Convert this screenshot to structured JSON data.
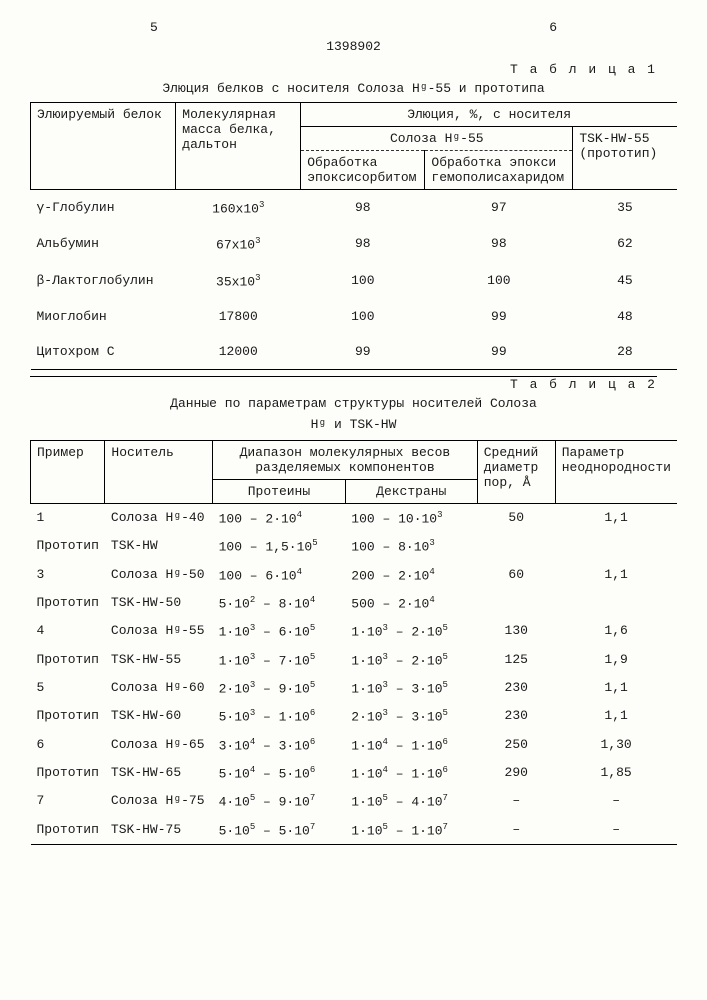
{
  "page_left": "5",
  "page_right": "6",
  "doc_number": "1398902",
  "table1": {
    "label": "Т а б л и ц а 1",
    "caption": "Элюция белков с носителя Солоза Нᵍ-55 и прототипа",
    "head": {
      "protein": "Элюируемый белок",
      "mass": "Молекулярная масса белка, дальтон",
      "elution": "Элюция, %, с  носителя",
      "soloza": "Солоза Нᵍ-55",
      "tsk": "TSK-HW-55 (прототип)",
      "treat1": "Обработка эпоксисорбитом",
      "treat2": "Обработка эпокси гемополисахаридом"
    },
    "rows": [
      {
        "p": "γ-Глобулин",
        "m": "160×10³",
        "a": "98",
        "b": "97",
        "c": "35"
      },
      {
        "p": "Альбумин",
        "m": "67×10³",
        "a": "98",
        "b": "98",
        "c": "62"
      },
      {
        "p": "β-Лактоглобулин",
        "m": "35×10³",
        "a": "100",
        "b": "100",
        "c": "45"
      },
      {
        "p": "Миоглобин",
        "m": "17800",
        "a": "100",
        "b": "99",
        "c": "48"
      },
      {
        "p": "Цитохром С",
        "m": "12000",
        "a": "99",
        "b": "99",
        "c": "28"
      }
    ]
  },
  "table2": {
    "label": "Т а б л и ц а 2",
    "caption": "Данные по параметрам структуры носителей Солоза",
    "caption2": "Нᵍ  и TSK-HW",
    "head": {
      "ex": "Пример",
      "carrier": "Носитель",
      "range": "Диапазон молекулярных весов разделяемых компонентов",
      "proteins": "Протеины",
      "dextrans": "Декстраны",
      "diam": "Средний диаметр пор, Å",
      "param": "Параметр неоднородности"
    },
    "rows": [
      {
        "ex": "1",
        "car": "Солоза Нᵍ-40",
        "pr": "100 – 2·10⁴",
        "dx": "100 – 10·10³",
        "d": "50",
        "p": "1,1"
      },
      {
        "ex": "Прототип",
        "car": "TSK-HW",
        "pr": "100 – 1,5·10⁵",
        "dx": "100 – 8·10³",
        "d": "",
        "p": ""
      },
      {
        "ex": "3",
        "car": "Солоза Нᵍ-50",
        "pr": "100 – 6·10⁴",
        "dx": "200 – 2·10⁴",
        "d": "60",
        "p": "1,1"
      },
      {
        "ex": "Прототип",
        "car": "TSK-HW-50",
        "pr": "5·10² – 8·10⁴",
        "dx": "500 – 2·10⁴",
        "d": "",
        "p": ""
      },
      {
        "ex": "4",
        "car": "Солоза Нᵍ-55",
        "pr": "1·10³ – 6·10⁵",
        "dx": "1·10³ – 2·10⁵",
        "d": "130",
        "p": "1,6"
      },
      {
        "ex": "Прототип",
        "car": "TSK-HW-55",
        "pr": "1·10³ – 7·10⁵",
        "dx": "1·10³ – 2·10⁵",
        "d": "125",
        "p": "1,9"
      },
      {
        "ex": "5",
        "car": "Солоза Нᵍ-60",
        "pr": "2·10³ – 9·10⁵",
        "dx": "1·10³ – 3·10⁵",
        "d": "230",
        "p": "1,1"
      },
      {
        "ex": "Прототип",
        "car": "TSK-HW-60",
        "pr": "5·10³ – 1·10⁶",
        "dx": "2·10³ – 3·10⁵",
        "d": "230",
        "p": "1,1"
      },
      {
        "ex": "6",
        "car": "Солоза Нᵍ-65",
        "pr": "3·10⁴ – 3·10⁶",
        "dx": "1·10⁴ – 1·10⁶",
        "d": "250",
        "p": "1,30"
      },
      {
        "ex": "Прототип",
        "car": "TSK-HW-65",
        "pr": "5·10⁴ – 5·10⁶",
        "dx": "1·10⁴ – 1·10⁶",
        "d": "290",
        "p": "1,85"
      },
      {
        "ex": "7",
        "car": "Солоза Нᵍ-75",
        "pr": "4·10⁵ – 9·10⁷",
        "dx": "1·10⁵ – 4·10⁷",
        "d": "–",
        "p": "–"
      },
      {
        "ex": "Прототип",
        "car": "TSK-HW-75",
        "pr": "5·10⁵ – 5·10⁷",
        "dx": "1·10⁵ – 1·10⁷",
        "d": "–",
        "p": "–"
      }
    ]
  }
}
